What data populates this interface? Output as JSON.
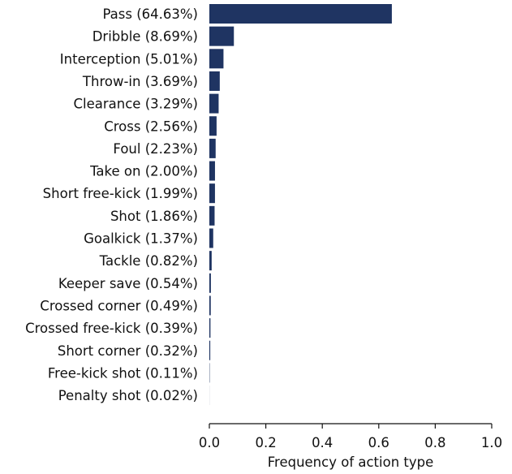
{
  "chart_data": {
    "type": "bar",
    "orientation": "horizontal",
    "categories": [
      "Pass (64.63%)",
      "Dribble (8.69%)",
      "Interception (5.01%)",
      "Throw-in (3.69%)",
      "Clearance (3.29%)",
      "Cross (2.56%)",
      "Foul (2.23%)",
      "Take on (2.00%)",
      "Short free-kick (1.99%)",
      "Shot (1.86%)",
      "Goalkick (1.37%)",
      "Tackle (0.82%)",
      "Keeper save (0.54%)",
      "Crossed corner (0.49%)",
      "Crossed free-kick (0.39%)",
      "Short corner (0.32%)",
      "Free-kick shot (0.11%)",
      "Penalty shot (0.02%)"
    ],
    "values": [
      0.6463,
      0.0869,
      0.0501,
      0.0369,
      0.0329,
      0.0256,
      0.0223,
      0.02,
      0.0199,
      0.0186,
      0.0137,
      0.0082,
      0.0054,
      0.0049,
      0.0039,
      0.0032,
      0.0011,
      0.0002
    ],
    "xlabel": "Frequency of action type",
    "ylabel": "",
    "title": "",
    "xlim": [
      0.0,
      1.0
    ],
    "xticks": [
      "0.0",
      "0.2",
      "0.4",
      "0.6",
      "0.8",
      "1.0"
    ],
    "bar_color": "#1f3462",
    "grid": false,
    "legend": "none"
  }
}
